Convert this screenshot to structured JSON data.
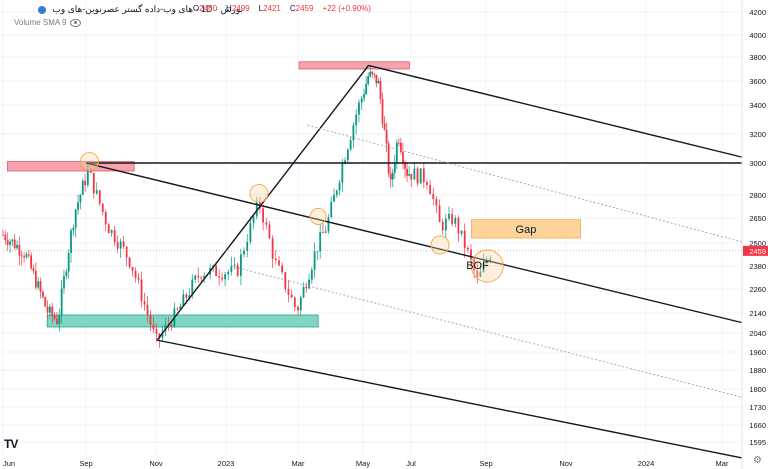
{
  "header": {
    "title": "بورس · 1D · های وب-داده گستر عصرنوین-های وب",
    "ohlc": [
      {
        "k": "O",
        "v": "2460"
      },
      {
        "k": "H",
        "v": "2499"
      },
      {
        "k": "L",
        "v": "2421"
      },
      {
        "k": "C",
        "v": "2459"
      },
      {
        "k": "",
        "v": "+22 (+0.90%)"
      }
    ],
    "volume_label": "Volume SMA 9",
    "symbol_color": "#3c78d8"
  },
  "chart_data": {
    "type": "candlestick",
    "price_scale": {
      "range": [
        1510,
        4220
      ],
      "ticks": [
        4200,
        4000,
        3800,
        3600,
        3400,
        3200,
        3000,
        2800,
        2650,
        2500,
        2380,
        2260,
        2140,
        2040,
        1960,
        1880,
        1800,
        1730,
        1660,
        1595
      ]
    },
    "time_axis": {
      "labels": [
        "Jun",
        "Sep",
        "Nov",
        "2023",
        "Mar",
        "May",
        "Jul",
        "Sep",
        "Nov",
        "2024",
        "Mar"
      ],
      "start": "2022-06-01",
      "label_dates": [
        "2022-06-01",
        "2022-09-01",
        "2022-11-01",
        "2023-01-01",
        "2023-03-01",
        "2023-05-01",
        "2023-07-01",
        "2023-09-01",
        "2023-11-01",
        "2024-01-01",
        "2024-03-01"
      ]
    },
    "last_price": {
      "value": 2459,
      "label": "2459",
      "color": "#f23645"
    },
    "colors": {
      "up": "#089981",
      "down": "#f23645"
    },
    "anchors": [
      [
        "2022-06-01",
        2550
      ],
      [
        "2022-06-25",
        2450
      ],
      [
        "2022-07-20",
        2150
      ],
      [
        "2022-08-01",
        2100
      ],
      [
        "2022-08-20",
        2700
      ],
      [
        "2022-09-03",
        2950
      ],
      [
        "2022-09-20",
        2600
      ],
      [
        "2022-10-10",
        2400
      ],
      [
        "2022-11-01",
        2000
      ],
      [
        "2022-11-20",
        2150
      ],
      [
        "2022-12-10",
        2350
      ],
      [
        "2023-01-10",
        2350
      ],
      [
        "2023-01-28",
        2750
      ],
      [
        "2023-02-10",
        2400
      ],
      [
        "2023-02-28",
        2150
      ],
      [
        "2023-03-20",
        2500
      ],
      [
        "2023-03-28",
        2600
      ],
      [
        "2023-04-10",
        2950
      ],
      [
        "2023-04-25",
        3350
      ],
      [
        "2023-05-08",
        3650
      ],
      [
        "2023-05-20",
        3600
      ],
      [
        "2023-06-05",
        2850
      ],
      [
        "2023-06-15",
        3200
      ],
      [
        "2023-06-25",
        2950
      ],
      [
        "2023-07-15",
        2900
      ],
      [
        "2023-07-25",
        2600
      ],
      [
        "2023-08-05",
        2650
      ],
      [
        "2023-08-15",
        2480
      ],
      [
        "2023-08-25",
        2300
      ],
      [
        "2023-09-05",
        2459
      ]
    ],
    "zones": [
      {
        "name": "resistance-zone-sep",
        "from": "2022-06-06",
        "to": "2022-10-13",
        "low": 2950,
        "high": 3010,
        "fill": "#f5a3ad",
        "stroke": "#e05a68"
      },
      {
        "name": "resistance-zone-may",
        "from": "2023-03-02",
        "to": "2023-06-29",
        "low": 3700,
        "high": 3760,
        "fill": "#f5a3ad",
        "stroke": "#e05a68"
      },
      {
        "name": "support-zone",
        "from": "2022-07-20",
        "to": "2023-03-20",
        "low": 2070,
        "high": 2130,
        "fill": "#7fd6c2",
        "stroke": "#2aa68a"
      },
      {
        "name": "gap-zone",
        "from": "2023-08-20",
        "to": "2023-11-12",
        "low": 2530,
        "high": 2640,
        "fill": "#fcd39b",
        "stroke": "#f2a64a",
        "label": "Gap"
      }
    ],
    "lines": [
      {
        "name": "channel-upper",
        "p1": [
          "2022-09-01",
          3000
        ],
        "p2": [
          "2024-03-31",
          3000
        ],
        "color": "#131722",
        "width": 1.4
      },
      {
        "name": "channel-mid",
        "p1": [
          "2022-09-01",
          3000
        ],
        "p2": [
          "2024-03-31",
          2070
        ],
        "color": "#131722",
        "width": 1.4
      },
      {
        "name": "channel-lower",
        "p1": [
          "2022-11-02",
          2010
        ],
        "p2": [
          "2024-03-31",
          1520
        ],
        "color": "#131722",
        "width": 1.4
      },
      {
        "name": "channel-top-right",
        "p1": [
          "2023-05-08",
          3730
        ],
        "p2": [
          "2024-03-31",
          3010
        ],
        "color": "#131722",
        "width": 1.4
      },
      {
        "name": "rise-line",
        "p1": [
          "2022-11-02",
          2010
        ],
        "p2": [
          "2023-05-08",
          3730
        ],
        "color": "#131722",
        "width": 1.4
      },
      {
        "name": "dotted-upper",
        "p1": [
          "2023-03-10",
          3260
        ],
        "p2": [
          "2024-03-31",
          2480
        ],
        "color": "#9598a1",
        "width": 0.8,
        "dash": "2,2"
      },
      {
        "name": "dotted-lower",
        "p1": [
          "2023-01-05",
          2380
        ],
        "p2": [
          "2024-03-31",
          1750
        ],
        "color": "#9598a1",
        "width": 0.8,
        "dash": "2,2"
      },
      {
        "name": "last-price-line",
        "p1": [
          "2022-06-01",
          2459
        ],
        "p2": [
          "2024-03-31",
          2459
        ],
        "color": "#9598a1",
        "width": 0.6,
        "dash": "1,2"
      }
    ],
    "circles": [
      {
        "name": "circle-sep-top",
        "date": "2022-09-04",
        "price": 3010,
        "r": 9
      },
      {
        "name": "circle-jan-top",
        "date": "2023-01-28",
        "price": 2810,
        "r": 9
      },
      {
        "name": "circle-mar",
        "date": "2023-03-20",
        "price": 2660,
        "r": 8
      },
      {
        "name": "circle-jul",
        "date": "2023-07-25",
        "price": 2490,
        "r": 9
      },
      {
        "name": "circle-bof",
        "date": "2023-09-02",
        "price": 2380,
        "r": 16
      }
    ],
    "annotations": [
      {
        "name": "bof-label",
        "text": "BOF",
        "date": "2023-08-25",
        "price": 2365
      }
    ]
  }
}
